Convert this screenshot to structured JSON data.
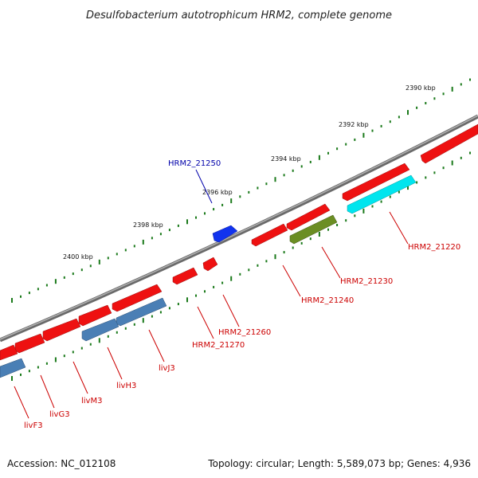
{
  "title": "Desulfobacterium autotrophicum HRM2, complete genome",
  "footer": {
    "accession": "Accession: NC_012108",
    "topology": "Topology: circular; Length: 5,589,073 bp; Genes: 4,936"
  },
  "ruler": [
    {
      "label": "2390 kbp"
    },
    {
      "label": "2392 kbp"
    },
    {
      "label": "2394 kbp"
    },
    {
      "label": "2396 kbp"
    },
    {
      "label": "2398 kbp"
    },
    {
      "label": "2400 kbp"
    }
  ],
  "gene_labels": [
    {
      "text": "HRM2_21250",
      "color": "#0000aa"
    },
    {
      "text": "HRM2_21220",
      "color": "#cc0000"
    },
    {
      "text": "HRM2_21230",
      "color": "#cc0000"
    },
    {
      "text": "HRM2_21240",
      "color": "#cc0000"
    },
    {
      "text": "HRM2_21260",
      "color": "#cc0000"
    },
    {
      "text": "HRM2_21270",
      "color": "#cc0000"
    },
    {
      "text": "livJ3",
      "color": "#cc0000"
    },
    {
      "text": "livH3",
      "color": "#cc0000"
    },
    {
      "text": "livM3",
      "color": "#cc0000"
    },
    {
      "text": "livG3",
      "color": "#cc0000"
    },
    {
      "text": "livF3",
      "color": "#cc0000"
    }
  ],
  "colors": {
    "backbone": "#888888",
    "cds": "#ee1111",
    "blue_feature": "#1133ee",
    "steelblue_feature": "#4a7fb5",
    "cyan_feature": "#00e5ee",
    "olive_feature": "#6b8e23",
    "dots": "#1b7a1b"
  }
}
